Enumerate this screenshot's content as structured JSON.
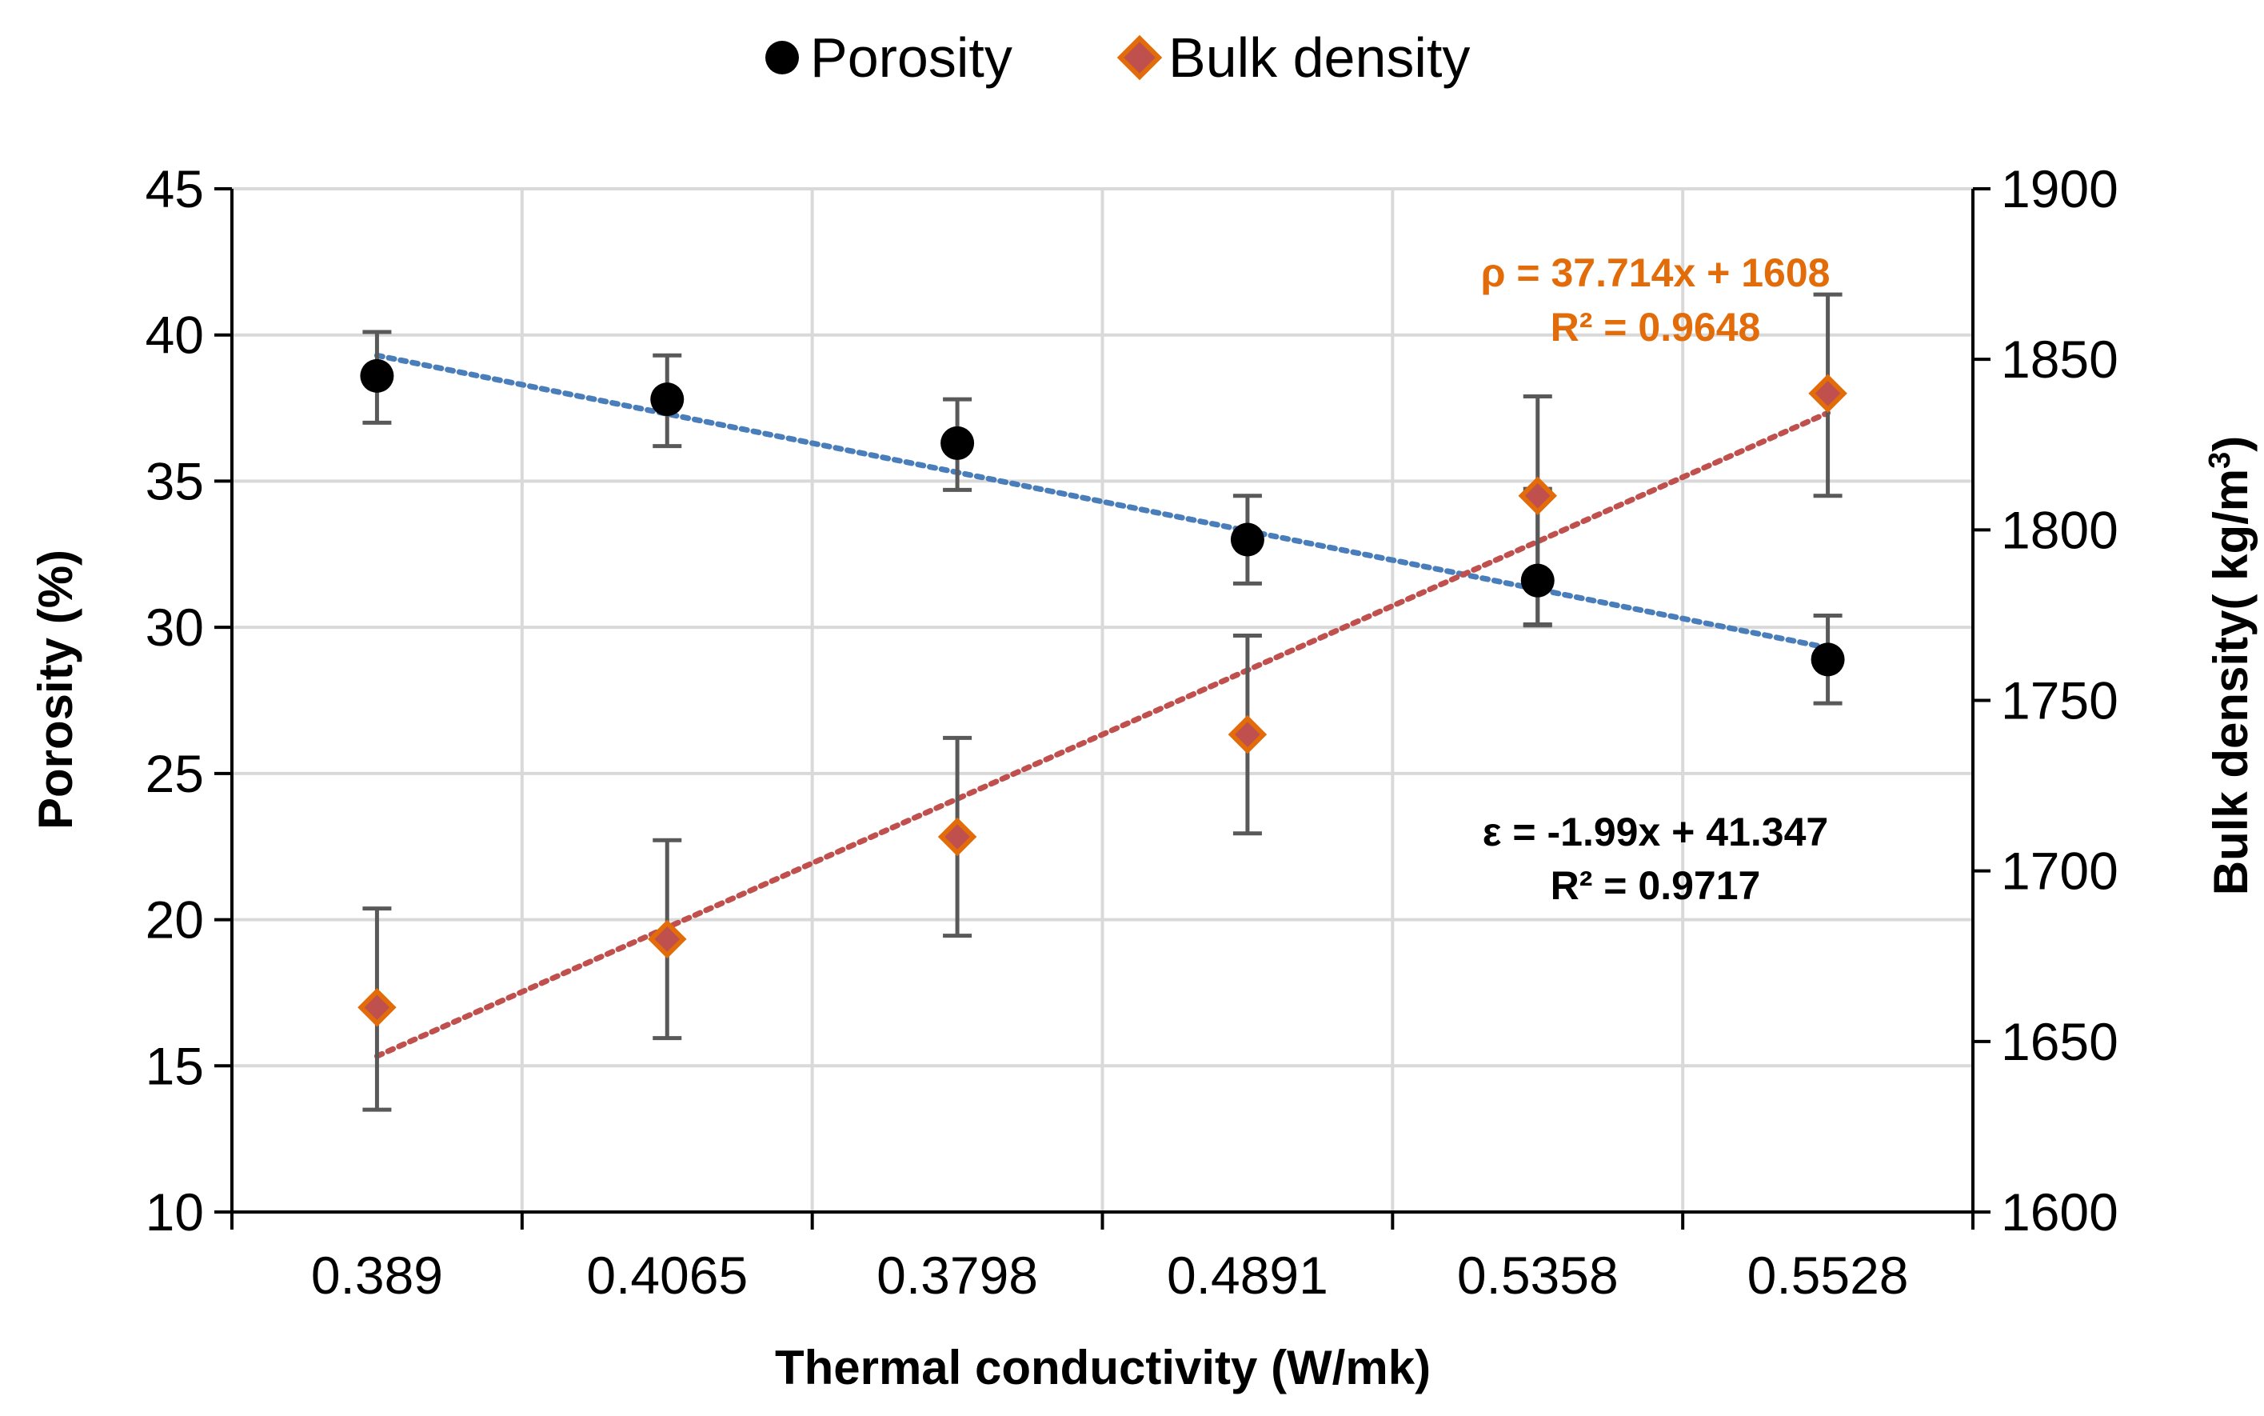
{
  "chart_data": {
    "type": "scatter",
    "title": "",
    "xlabel": "Thermal conductivity (W/mk)",
    "ylabel": "Porosity (%)",
    "y2label_prefix": "Bulk density( kg/m",
    "y2label_sup": "3",
    "y2label_suffix": ")",
    "categories": [
      "0.389",
      "0.4065",
      "0.3798",
      "0.4891",
      "0.5358",
      "0.5528"
    ],
    "ylim": [
      10,
      45
    ],
    "y_ticks": [
      10,
      15,
      20,
      25,
      30,
      35,
      40,
      45
    ],
    "y_tick_labels": [
      "10",
      "15",
      "20",
      "25",
      "30",
      "35",
      "40",
      "45"
    ],
    "y2lim": [
      1600,
      1900
    ],
    "y2_ticks": [
      1600,
      1650,
      1700,
      1750,
      1800,
      1850,
      1900
    ],
    "y2_tick_labels": [
      "1600",
      "1650",
      "1700",
      "1750",
      "1800",
      "1850",
      "1900"
    ],
    "grid": true,
    "legend_position": "top-center",
    "series": [
      {
        "name": "Porosity",
        "axis": "left",
        "marker": "circle",
        "color": "#000000",
        "values": [
          38.6,
          37.8,
          36.3,
          33.0,
          31.6,
          28.9
        ],
        "error_low": [
          37.0,
          36.2,
          34.7,
          31.5,
          30.1,
          27.4
        ],
        "error_high": [
          40.1,
          39.3,
          37.8,
          34.5,
          37.9,
          30.4
        ],
        "trendline": {
          "color": "#4A7EBB",
          "start": 39.3,
          "end": 29.3
        },
        "equation": "ε = -1.99x + 41.347",
        "r2": "R² = 0.9717",
        "equation_color": "#000000"
      },
      {
        "name": "Bulk density",
        "axis": "right",
        "marker": "diamond",
        "color": "#E26B0A",
        "fill": "#C0504D",
        "values": [
          1660,
          1680,
          1710,
          1740,
          1810,
          1840
        ],
        "error_low": [
          1630,
          1651,
          1681,
          1711,
          1772,
          1810
        ],
        "error_high": [
          1689,
          1709,
          1739,
          1769,
          1812,
          1869
        ],
        "trendline": {
          "color": "#C0504D",
          "start": 1645.7,
          "end": 1834.3
        },
        "equation": "ρ = 37.714x + 1608",
        "r2": "R² = 0.9648",
        "equation_color": "#E26B0A"
      }
    ],
    "error_bar_color": "#595959",
    "grid_color": "#D9D9D9"
  }
}
